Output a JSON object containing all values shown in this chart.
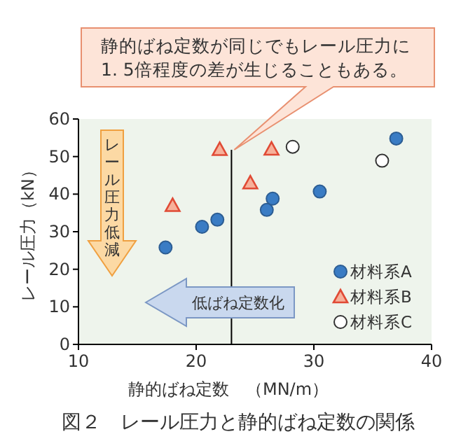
{
  "chart_data": {
    "type": "scatter",
    "title": "図２　レール圧力と静的ばね定数の関係",
    "xlabel": "静的ばね定数　（MN/m）",
    "ylabel": "レール圧力（kN）",
    "xlim": [
      10,
      40
    ],
    "xticks": [
      10,
      20,
      30,
      40
    ],
    "ylim": [
      0,
      60
    ],
    "yticks": [
      0,
      10,
      20,
      30,
      40,
      50,
      60
    ],
    "legend": "bottom right",
    "grid": false,
    "series": [
      {
        "name": "材料系A",
        "color": "#3a7cc4",
        "marker": "circle",
        "x": [
          17.4,
          20.5,
          21.8,
          26.0,
          26.5,
          30.5,
          37.0
        ],
        "values": [
          25.8,
          31.3,
          33.2,
          35.8,
          38.8,
          40.7,
          54.8
        ]
      },
      {
        "name": "材料系B",
        "color": "#e04a35",
        "marker": "triangle",
        "x": [
          18.0,
          22.0,
          24.6,
          26.4
        ],
        "values": [
          37,
          51.9,
          43,
          52
        ]
      },
      {
        "name": "材料系C",
        "color": "#333333",
        "marker": "circle-open",
        "x": [
          28.2,
          35.8
        ],
        "values": [
          52.6,
          48.9
        ]
      }
    ],
    "ref_lines": [
      {
        "axis": "x",
        "value": 23
      }
    ],
    "annotations": [
      "静的ばね定数が同じでもレール圧力に1. 5倍程度の差が生じることもある。",
      "レール圧力低減",
      "低ばね定数化"
    ]
  }
}
